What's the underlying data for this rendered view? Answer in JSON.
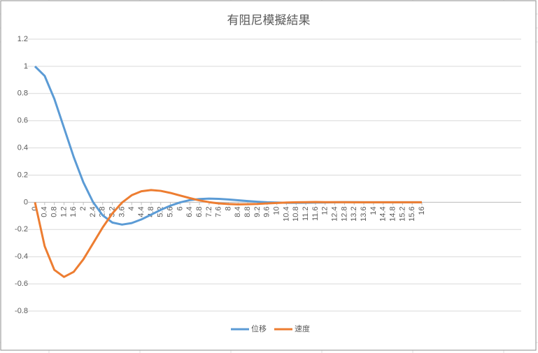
{
  "chart_data": {
    "type": "line",
    "title": "有阻尼模擬結果",
    "x": [
      0,
      0.4,
      0.8,
      1.2,
      1.6,
      2,
      2.4,
      2.8,
      3.2,
      3.6,
      4,
      4.4,
      4.8,
      5.2,
      5.6,
      6,
      6.4,
      6.8,
      7.2,
      7.6,
      8,
      8.4,
      8.8,
      9.2,
      9.6,
      10,
      10.4,
      10.8,
      11.2,
      11.6,
      12,
      12.4,
      12.8,
      13.2,
      13.6,
      14,
      14.4,
      14.8,
      15.2,
      15.6,
      16
    ],
    "series": [
      {
        "name": "位移",
        "color": "#5b9bd5",
        "values": [
          1,
          0.93,
          0.761,
          0.548,
          0.334,
          0.147,
          0.002,
          -0.096,
          -0.149,
          -0.164,
          -0.153,
          -0.126,
          -0.091,
          -0.056,
          -0.025,
          -0.001,
          0.016,
          0.024,
          0.027,
          0.025,
          0.021,
          0.015,
          0.009,
          0.004,
          0,
          -0.002,
          -0.004,
          -0.004,
          -0.003,
          -0.002,
          -0.001,
          0,
          0.001,
          0.001,
          0,
          0,
          0,
          0,
          0,
          0,
          0
        ]
      },
      {
        "name": "速度",
        "color": "#ed7d31",
        "values": [
          0,
          -0.323,
          -0.497,
          -0.549,
          -0.512,
          -0.42,
          -0.303,
          -0.185,
          -0.082,
          -0.002,
          0.052,
          0.081,
          0.09,
          0.084,
          0.069,
          0.05,
          0.031,
          0.014,
          0.001,
          -0.008,
          -0.013,
          -0.015,
          -0.014,
          -0.012,
          -0.008,
          -0.005,
          -0.002,
          0,
          0.001,
          0.002,
          0.001,
          0.001,
          0.001,
          0,
          0,
          0,
          0,
          0,
          0,
          0,
          0
        ]
      }
    ],
    "xlim": [
      0,
      16
    ],
    "xticks": [
      0,
      0.4,
      0.8,
      1.2,
      1.6,
      2,
      2.4,
      2.8,
      3.2,
      3.6,
      4,
      4.4,
      4.8,
      5.2,
      5.6,
      6,
      6.4,
      6.8,
      7.2,
      7.6,
      8,
      8.4,
      8.8,
      9.2,
      9.6,
      10,
      10.4,
      10.8,
      11.2,
      11.6,
      12,
      12.4,
      12.8,
      13.2,
      13.6,
      14,
      14.4,
      14.8,
      15.2,
      15.6,
      16
    ],
    "ylim": [
      -0.8,
      1.2
    ],
    "yticks": [
      -0.8,
      -0.6,
      -0.4,
      -0.2,
      0,
      0.2,
      0.4,
      0.6,
      0.8,
      1,
      1.2
    ],
    "grid": true,
    "legend": "bottom"
  }
}
